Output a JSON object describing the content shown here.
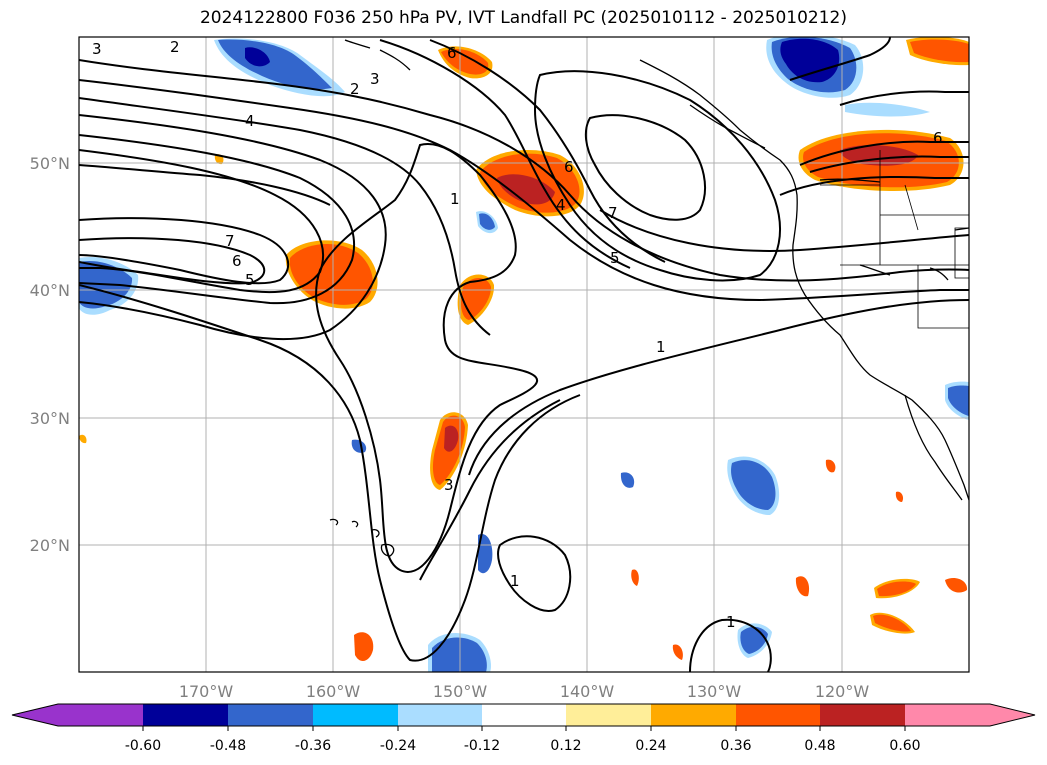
{
  "title": "2024122800 F036 250 hPa PV, IVT Landfall PC (2025010112 - 2025010212)",
  "map": {
    "lon_ticks": [
      "170°W",
      "160°W",
      "150°W",
      "140°W",
      "130°W",
      "120°W"
    ],
    "lat_ticks": [
      "50°N",
      "40°N",
      "30°N",
      "20°N"
    ],
    "gridlines": true,
    "land_features": [
      "coastline",
      "state-borders"
    ]
  },
  "contours": {
    "color": "#000000",
    "labels": [
      "3",
      "2",
      "2",
      "3",
      "4",
      "6",
      "7",
      "6",
      "5",
      "1",
      "6",
      "4",
      "7",
      "5",
      "1",
      "3",
      "1",
      "1",
      "6"
    ]
  },
  "colorbar": {
    "levels": [
      "-0.60",
      "-0.48",
      "-0.36",
      "-0.24",
      "-0.12",
      "0.12",
      "0.24",
      "0.36",
      "0.48",
      "0.60"
    ],
    "colors": [
      "#9933cc",
      "#000099",
      "#3366cc",
      "#00bbff",
      "#aaddff",
      "#ffffff",
      "#ffee99",
      "#ffaa00",
      "#ff5500",
      "#bb2222",
      "#ff88aa"
    ]
  }
}
